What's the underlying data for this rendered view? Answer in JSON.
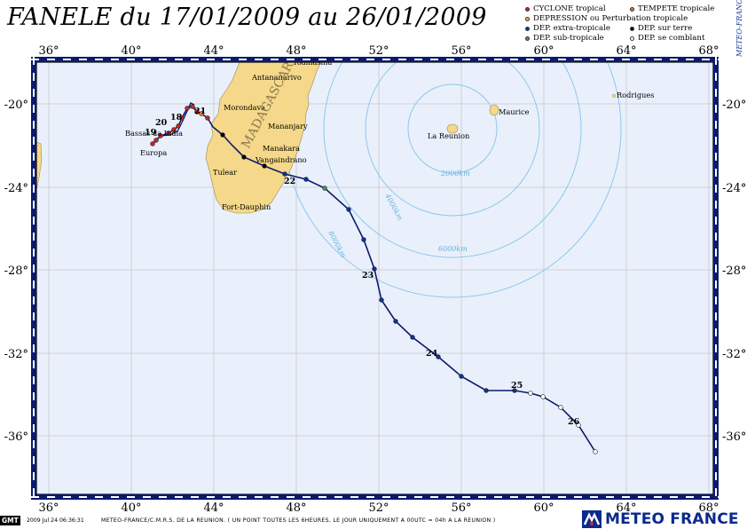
{
  "title": "FANELE du 17/01/2009 au 26/01/2009",
  "legend": [
    {
      "label": "CYCLONE tropical",
      "color": "#d32020"
    },
    {
      "label": "TEMPETE tropicale",
      "color": "#e07a20"
    },
    {
      "label": "DEPRESSION ou Perturbation tropicale",
      "color": "#f0c020"
    },
    {
      "label": "DEP. extra-tropicale",
      "color": "#1030a0"
    },
    {
      "label": "DEP. sur terre",
      "color": "#000000"
    },
    {
      "label": "DEP. sub-tropicale",
      "color": "#40a040"
    },
    {
      "label": "DEP. se comblant",
      "color": "#ffffff"
    }
  ],
  "side_credit": "METEO-FRANCE",
  "axes": {
    "lon_ticks": [
      "36°",
      "40°",
      "44°",
      "48°",
      "52°",
      "56°",
      "60°",
      "64°",
      "68°"
    ],
    "lat_ticks": [
      "-20°",
      "-24°",
      "-28°",
      "-32°",
      "-36°"
    ]
  },
  "places": [
    "Antananarivo",
    "Toamasina",
    "Morondava",
    "Mananjary",
    "Manakara",
    "Vangaindrano",
    "Tulear",
    "Fort-Dauphin",
    "Bassas da India",
    "Europa",
    "La Reunion",
    "Maurice",
    "Rodrigues",
    "MADAGASCAR"
  ],
  "range_labels": [
    "2000km",
    "4000km",
    "6000km",
    "8000km"
  ],
  "day_labels": [
    "18",
    "19",
    "20",
    "21",
    "22",
    "23",
    "24",
    "25",
    "26"
  ],
  "footer": {
    "gmt": "GMT",
    "stamp": "2009 Jul 24 06:36:31",
    "note": "METEO-FRANCE/C.M.R.S. DE LA REUNION.  ( UN POINT TOUTES LES 6HEURES, LE JOUR UNIQUEMENT A 00UTC = 04h A LA REUNION )",
    "logo": "METEO FRANCE"
  },
  "colors": {
    "sea": "#e9f0fb",
    "land": "#f5d889",
    "track": "#0a1a6e",
    "grid": "#c9c9c9",
    "range": "#8ec7ea"
  }
}
